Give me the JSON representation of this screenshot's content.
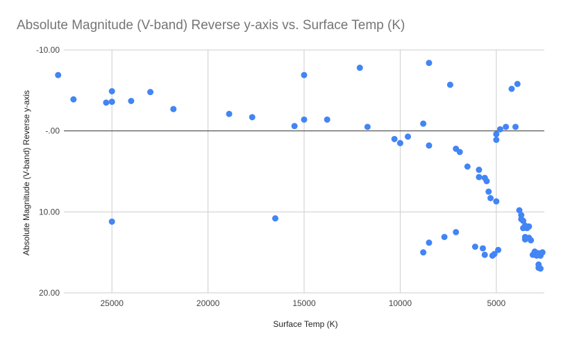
{
  "chart_data": {
    "type": "scatter",
    "title": "Absolute Magnitude (V-band) Reverse y-axis vs. Surface Temp (K)",
    "xlabel": "Surface Temp (K)",
    "ylabel": "Absolute Magnitude (V-band) Reverse y-axis",
    "xlim": [
      27500,
      2500
    ],
    "ylim": [
      -10,
      20
    ],
    "x_reversed": true,
    "y_reversed": true,
    "x_ticks": [
      25000,
      20000,
      15000,
      10000,
      5000
    ],
    "x_tick_labels": [
      "25000",
      "20000",
      "15000",
      "10000",
      "5000"
    ],
    "y_ticks": [
      -10,
      0,
      10,
      20
    ],
    "y_tick_labels": [
      "-10.00",
      "-.00",
      "10.00",
      "20.00"
    ],
    "grid": true,
    "color": "#4285f4",
    "series": [
      {
        "x": [
          27800,
          27000,
          25300,
          25000,
          25000,
          25000,
          24000,
          23000,
          21800,
          18900,
          17700,
          16500,
          15500,
          15000,
          15000,
          13800,
          12100,
          11700,
          10300,
          10000,
          9600,
          8800,
          8500,
          8500,
          8500,
          7400,
          7100,
          6900,
          6500,
          5900,
          5900,
          5600,
          5500,
          5400,
          5300,
          5000,
          5000,
          5000,
          4800,
          4500,
          4200,
          4000,
          3900,
          3800,
          3700,
          3700,
          3600,
          3600,
          3500,
          3500,
          3500,
          3400,
          3300,
          3300,
          3200,
          3100,
          3000,
          2900,
          2900,
          2800,
          2800,
          2800,
          2700,
          2700,
          2600,
          8800,
          7700,
          7100,
          6100,
          5700,
          5600,
          5200,
          5100,
          4900
        ],
        "y": [
          -6.9,
          -3.9,
          -3.5,
          -4.9,
          -3.6,
          11.2,
          -3.7,
          -4.8,
          -2.7,
          -2.1,
          -1.7,
          10.8,
          -0.6,
          -1.4,
          -6.9,
          -1.4,
          -7.8,
          -0.5,
          1.0,
          1.5,
          0.7,
          -0.9,
          1.8,
          -8.4,
          13.8,
          -5.7,
          2.2,
          2.6,
          4.4,
          4.8,
          5.7,
          5.8,
          6.2,
          7.5,
          8.3,
          8.7,
          0.4,
          1.1,
          -0.2,
          -0.5,
          -5.2,
          -0.5,
          -5.8,
          9.8,
          10.4,
          10.9,
          11.1,
          12.0,
          13.1,
          13.4,
          11.7,
          12.0,
          13.2,
          11.8,
          13.5,
          15.3,
          14.9,
          15.4,
          15.2,
          16.9,
          16.5,
          15.1,
          17.0,
          15.4,
          15.0,
          15.0,
          13.1,
          12.5,
          14.3,
          14.5,
          15.3,
          15.4,
          15.2,
          14.7
        ]
      }
    ]
  }
}
